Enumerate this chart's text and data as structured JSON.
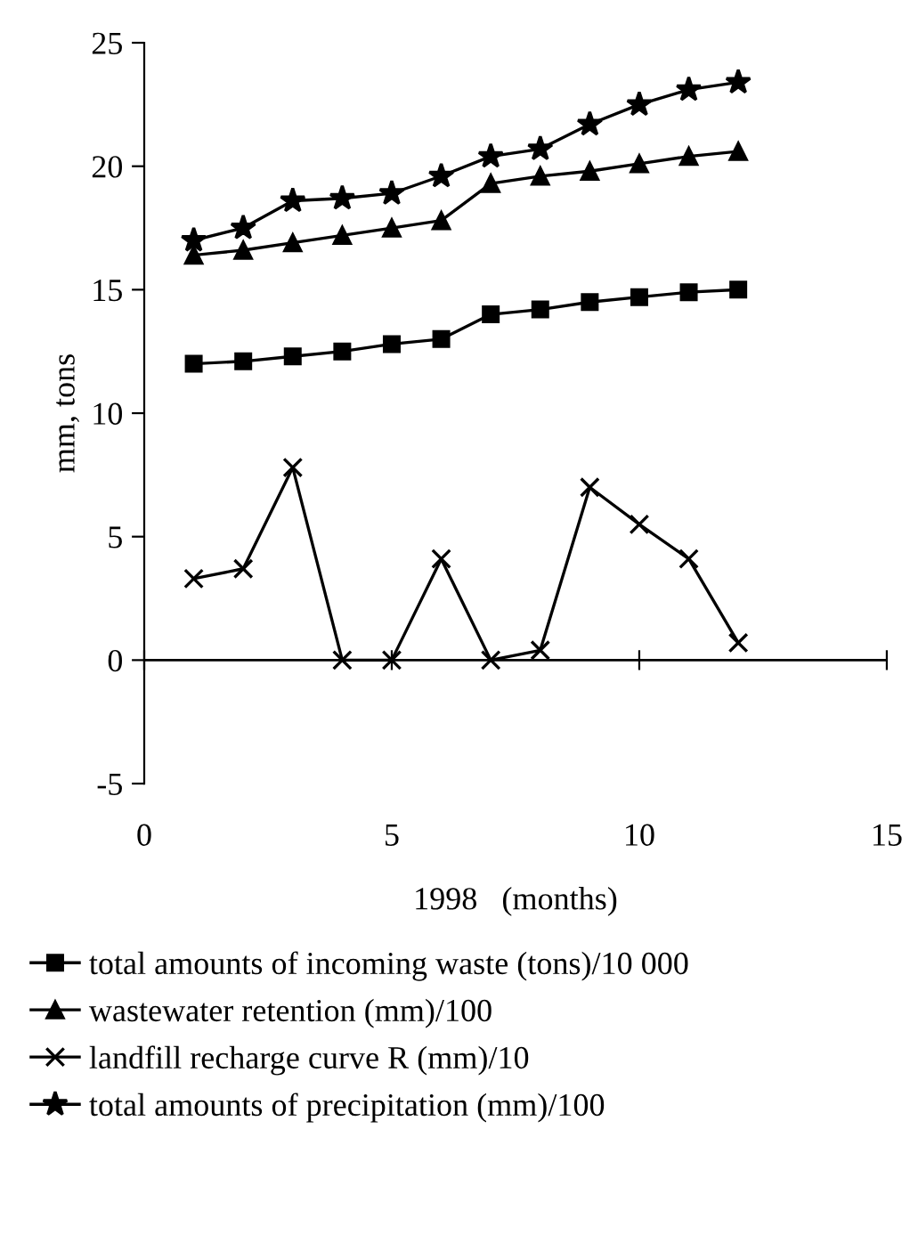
{
  "chart_data": {
    "type": "line",
    "xlabel": "1998   (months)",
    "ylabel": "mm, tons",
    "x": [
      1,
      2,
      3,
      4,
      5,
      6,
      7,
      8,
      9,
      10,
      11,
      12
    ],
    "series": [
      {
        "name": "total amounts of incoming waste (tons)/10 000",
        "color": "#000000",
        "marker": "square",
        "values": [
          12.0,
          12.1,
          12.3,
          12.5,
          12.8,
          13.0,
          14.0,
          14.2,
          14.5,
          14.7,
          14.9,
          15.0
        ]
      },
      {
        "name": "wastewater retention (mm)/100",
        "color": "#000000",
        "marker": "triangle",
        "values": [
          16.4,
          16.6,
          16.9,
          17.2,
          17.5,
          17.8,
          19.3,
          19.6,
          19.8,
          20.1,
          20.4,
          20.6
        ]
      },
      {
        "name": "landfill recharge curve R (mm)/10",
        "color": "#000000",
        "marker": "cross",
        "values": [
          3.3,
          3.7,
          7.8,
          0.0,
          0.0,
          4.1,
          0.0,
          0.4,
          7.0,
          5.5,
          4.1,
          0.7
        ]
      },
      {
        "name": "total amounts of precipitation (mm)/100",
        "color": "#000000",
        "marker": "star",
        "values": [
          17.0,
          17.5,
          18.6,
          18.7,
          18.9,
          19.6,
          20.4,
          20.7,
          21.7,
          22.5,
          23.1,
          23.4
        ]
      }
    ],
    "xlim": [
      0,
      15
    ],
    "xticks": [
      0,
      5,
      10,
      15
    ],
    "ylim": [
      -5,
      25
    ],
    "yticks": [
      -5,
      0,
      5,
      10,
      15,
      20,
      25
    ],
    "ref_lines": [
      {
        "axis": "y",
        "value": 0,
        "color": "#000000",
        "line_style": "solid"
      }
    ],
    "grid": false,
    "legend": "bottom",
    "line_style": "solid"
  }
}
